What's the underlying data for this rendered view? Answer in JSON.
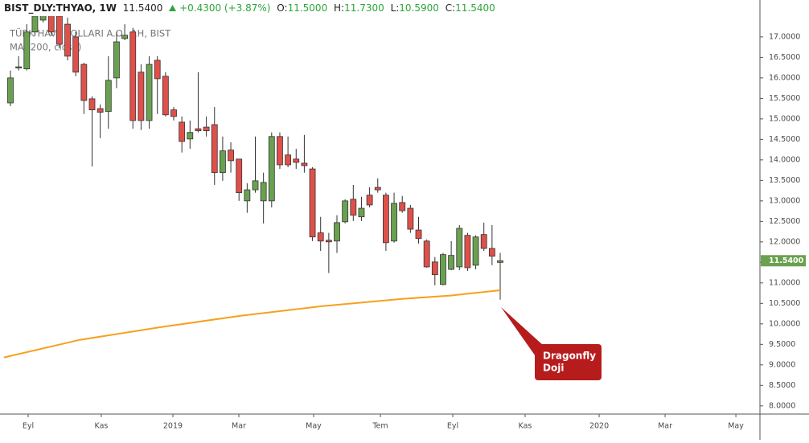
{
  "chart_data": {
    "type": "candlestick",
    "header": {
      "symbol": "BIST_DLY:THYAO, 1W",
      "price": "11.5400",
      "change": "+0.4300 (+3.87%)",
      "o_label": "O:",
      "o": "11.5000",
      "h_label": "H:",
      "h": "11.7300",
      "l_label": "L:",
      "l": "10.5900",
      "c_label": "C:",
      "c": "11.5400"
    },
    "title": "TÜRK HAVA YOLLARI A.O., 1H, BIST",
    "up_color": "#6aa150",
    "down_color": "#e0504a",
    "x": [
      0,
      1,
      2,
      3,
      4,
      5,
      6,
      7,
      8,
      9,
      10,
      11,
      12,
      13,
      14,
      15,
      16,
      17,
      18,
      19,
      20,
      21,
      22,
      23,
      24,
      25,
      26,
      27,
      28,
      29,
      30,
      31,
      32,
      33,
      34,
      35,
      36,
      37,
      38,
      39,
      40,
      41,
      42,
      43,
      44,
      45,
      46,
      47,
      48,
      49,
      50,
      51,
      52,
      53,
      54,
      55,
      56,
      57,
      58,
      59,
      60
    ],
    "open": [
      15.39,
      16.24,
      16.22,
      17.12,
      17.41,
      17.61,
      17.51,
      17.31,
      17.0,
      16.33,
      15.49,
      15.25,
      15.18,
      16.0,
      16.96,
      17.12,
      16.14,
      14.96,
      16.43,
      16.04,
      15.22,
      14.92,
      14.51,
      14.76,
      14.8,
      14.86,
      13.69,
      14.24,
      14.02,
      13.0,
      13.27,
      13.0,
      13.0,
      14.57,
      14.12,
      14.02,
      13.92,
      13.78,
      12.22,
      12.04,
      12.02,
      12.49,
      13.04,
      12.61,
      13.14,
      13.33,
      13.14,
      12.02,
      12.96,
      12.82,
      12.29,
      12.02,
      11.51,
      10.96,
      11.33,
      11.39,
      12.16,
      11.43,
      12.18,
      11.84,
      11.5
    ],
    "high": [
      16.18,
      16.53,
      17.31,
      17.67,
      17.86,
      17.8,
      17.67,
      17.47,
      17.12,
      16.37,
      15.55,
      15.35,
      16.53,
      17.12,
      17.31,
      17.22,
      16.33,
      16.53,
      16.53,
      16.14,
      15.29,
      15.06,
      14.96,
      16.14,
      15.06,
      15.29,
      14.57,
      14.43,
      14.02,
      13.43,
      14.57,
      13.69,
      14.67,
      14.67,
      14.57,
      14.27,
      14.61,
      13.82,
      12.61,
      12.22,
      12.65,
      13.04,
      13.39,
      13.1,
      13.33,
      13.55,
      13.2,
      13.2,
      13.12,
      12.9,
      12.61,
      12.06,
      11.63,
      11.73,
      12.02,
      12.41,
      12.22,
      12.16,
      12.47,
      12.41,
      11.73
    ],
    "low": [
      15.31,
      16.18,
      16.18,
      17.02,
      17.35,
      17.02,
      16.73,
      16.43,
      16.04,
      15.12,
      13.84,
      14.53,
      14.76,
      15.75,
      16.92,
      14.76,
      14.73,
      14.76,
      15.12,
      15.06,
      14.96,
      14.18,
      14.27,
      14.67,
      14.57,
      13.39,
      13.49,
      13.69,
      13.0,
      12.71,
      13.2,
      12.45,
      12.84,
      13.78,
      13.82,
      13.78,
      13.69,
      12.02,
      11.78,
      11.24,
      11.73,
      12.45,
      12.51,
      12.51,
      12.84,
      13.2,
      11.78,
      11.98,
      12.71,
      12.22,
      11.96,
      11.37,
      10.94,
      10.94,
      11.31,
      11.31,
      11.29,
      11.33,
      11.78,
      11.43,
      10.59
    ],
    "close": [
      16.0,
      16.27,
      17.12,
      17.51,
      17.71,
      17.12,
      16.82,
      16.53,
      16.14,
      15.45,
      15.22,
      15.16,
      15.94,
      16.88,
      17.04,
      14.96,
      14.96,
      16.33,
      15.98,
      15.1,
      15.06,
      14.45,
      14.67,
      14.71,
      14.71,
      13.69,
      14.22,
      13.98,
      13.2,
      13.27,
      13.49,
      13.45,
      14.57,
      13.88,
      13.88,
      13.94,
      13.86,
      12.12,
      12.02,
      12.0,
      12.47,
      13.0,
      12.65,
      12.82,
      12.9,
      13.27,
      11.98,
      12.94,
      12.76,
      12.31,
      12.08,
      11.39,
      11.2,
      11.69,
      11.67,
      12.33,
      11.37,
      12.12,
      11.84,
      11.65,
      11.54
    ],
    "last_label": "11.5400",
    "series": [
      {
        "name": "MA (200, close)",
        "color": "#f7a01d",
        "x": [
          -0.8,
          8.5,
          18.4,
          28.3,
          38.1,
          48,
          53.9,
          60
        ],
        "values": [
          9.18,
          9.61,
          9.92,
          10.2,
          10.43,
          10.61,
          10.69,
          10.82
        ]
      }
    ],
    "annotation": {
      "lines": [
        "Dragonfly",
        "Doji"
      ]
    },
    "xlim": [
      -1.28,
      91.82
    ],
    "xticks": [
      {
        "value": 2.17,
        "label": "Eyl"
      },
      {
        "value": 11.13,
        "label": "Kas"
      },
      {
        "value": 19.9,
        "label": "2019"
      },
      {
        "value": 27.98,
        "label": "Mar"
      },
      {
        "value": 37.14,
        "label": "May"
      },
      {
        "value": 45.32,
        "label": "Tem"
      },
      {
        "value": 54.19,
        "label": "Eyl"
      },
      {
        "value": 63.05,
        "label": "Kas"
      },
      {
        "value": 72.12,
        "label": "2020"
      },
      {
        "value": 80.2,
        "label": "Mar"
      },
      {
        "value": 88.87,
        "label": "May"
      }
    ],
    "ylim": [
      7.8,
      17.9
    ],
    "yticks": [
      {
        "value": 8.0,
        "label": "8.0000"
      },
      {
        "value": 8.5,
        "label": "8.5000"
      },
      {
        "value": 9.0,
        "label": "9.0000"
      },
      {
        "value": 9.5,
        "label": "9.5000"
      },
      {
        "value": 10.0,
        "label": "10.0000"
      },
      {
        "value": 10.5,
        "label": "10.5000"
      },
      {
        "value": 11.0,
        "label": "11.0000"
      },
      {
        "value": 11.5,
        "label": "11.5000"
      },
      {
        "value": 12.0,
        "label": "12.0000"
      },
      {
        "value": 12.5,
        "label": "12.5000"
      },
      {
        "value": 13.0,
        "label": "13.0000"
      },
      {
        "value": 13.5,
        "label": "13.5000"
      },
      {
        "value": 14.0,
        "label": "14.0000"
      },
      {
        "value": 14.5,
        "label": "14.5000"
      },
      {
        "value": 15.0,
        "label": "15.0000"
      },
      {
        "value": 15.5,
        "label": "15.5000"
      },
      {
        "value": 16.0,
        "label": "16.0000"
      },
      {
        "value": 16.5,
        "label": "16.5000"
      },
      {
        "value": 17.0,
        "label": "17.0000"
      }
    ],
    "grid": false
  }
}
